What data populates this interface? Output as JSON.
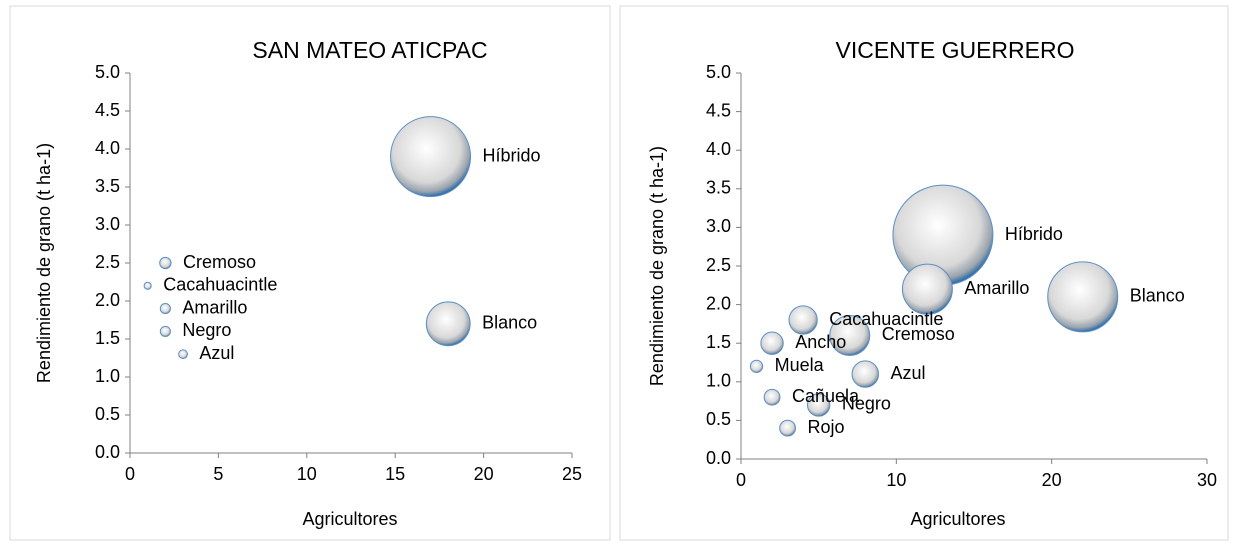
{
  "chart_data": [
    {
      "type": "bubble",
      "title": "SAN MATEO ATICPAC",
      "xlabel": "Agricultores",
      "ylabel": "Rendimiento de grano (t ha-1)",
      "labels": [
        "Híbrido",
        "Blanco",
        "Cremoso",
        "Cacahuacintle",
        "Amarillo",
        "Negro",
        "Azul"
      ],
      "x": [
        17,
        18,
        2,
        1,
        2,
        2,
        3
      ],
      "values": [
        3.9,
        1.7,
        2.5,
        2.2,
        1.9,
        1.6,
        1.3
      ],
      "sizes": [
        100,
        30,
        2,
        0.8,
        1.6,
        1.6,
        1.2
      ],
      "xlim": [
        0,
        25
      ],
      "xticks": [
        0,
        5,
        10,
        15,
        20,
        25
      ],
      "ylim": [
        0,
        5
      ],
      "yticks": [
        {
          "value": 0,
          "label": "0.0"
        },
        0.5,
        {
          "value": 1,
          "label": "1.0"
        },
        1.5,
        {
          "value": 2,
          "label": "2.0"
        },
        2.5,
        {
          "value": 3,
          "label": "3.0"
        },
        3.5,
        {
          "value": 4,
          "label": "4.0"
        },
        4.5,
        {
          "value": 5,
          "label": "5.0"
        }
      ]
    },
    {
      "type": "bubble",
      "title": "VICENTE GUERRERO",
      "xlabel": "Agricultores",
      "ylabel": "Rendimiento de grano (t ha-1)",
      "labels": [
        "Híbrido",
        "Blanco",
        "Amarillo",
        "Cremoso",
        "Cacahuacintle",
        "Azul",
        "Ancho",
        "Negro",
        "Muela",
        "Cañuela",
        "Rojo"
      ],
      "x": [
        13,
        22,
        12,
        7,
        4,
        8,
        2,
        5,
        1,
        2,
        3
      ],
      "values": [
        2.9,
        2.1,
        2.2,
        1.6,
        1.8,
        1.1,
        1.5,
        0.7,
        1.2,
        0.8,
        0.4
      ],
      "sizes": [
        100,
        49,
        25,
        16,
        8,
        7,
        5,
        5,
        1.5,
        2.5,
        2.5
      ],
      "xlim": [
        0,
        30
      ],
      "xticks": [
        0,
        10,
        20,
        30
      ],
      "ylim": [
        0,
        5
      ],
      "yticks": [
        {
          "value": 0,
          "label": "0.0"
        },
        0.5,
        {
          "value": 1,
          "label": "1.0"
        },
        1.5,
        {
          "value": 2,
          "label": "2.0"
        },
        2.5,
        {
          "value": 3,
          "label": "3.0"
        },
        3.5,
        {
          "value": 4,
          "label": "4.0"
        },
        4.5,
        {
          "value": 5,
          "label": "5.0"
        }
      ]
    }
  ]
}
